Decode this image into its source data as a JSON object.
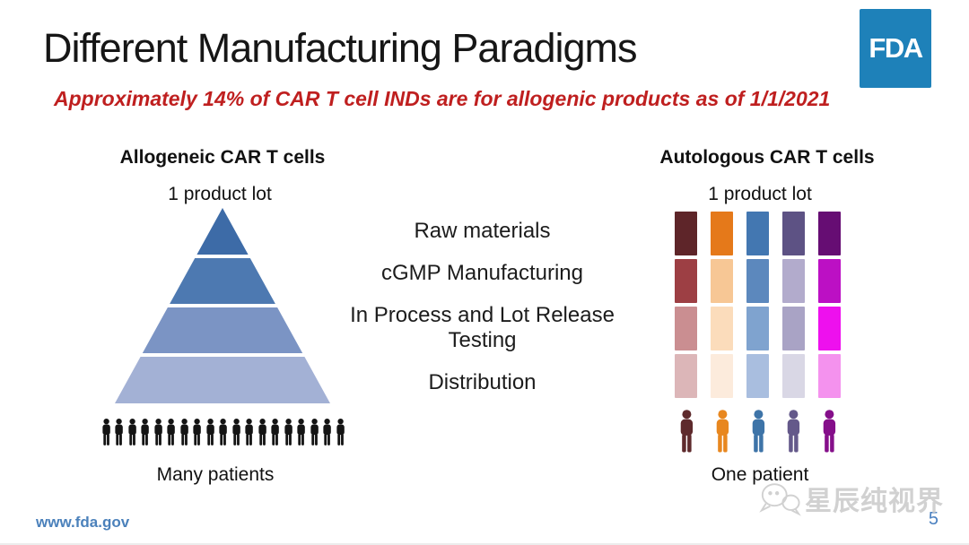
{
  "slide": {
    "title": "Different Manufacturing Paradigms",
    "subtitle": "Approximately 14% of CAR T cell INDs are for allogenic products as of 1/1/2021",
    "fda_logo_text": "FDA",
    "page_number": "5",
    "watermark_text": "星辰纯视界"
  },
  "left_panel": {
    "heading": "Allogeneic CAR T cells",
    "top_label": "1 product lot",
    "bottom_label": "Many patients",
    "patient_count": 19,
    "patient_color": "#141414",
    "pyramid_colors": [
      "#3d6ba7",
      "#4d79b1",
      "#7b94c4",
      "#a3b1d5"
    ]
  },
  "center_labels": [
    "Raw materials",
    "cGMP Manufacturing",
    "In Process and Lot Release Testing",
    "Distribution"
  ],
  "right_panel": {
    "heading": "Autologous CAR T cells",
    "top_label": "1 product lot",
    "bottom_label": "One patient",
    "grid_rows": [
      [
        "#5e2529",
        "#e5791a",
        "#4377b1",
        "#5d5284",
        "#660d73"
      ],
      [
        "#9d3f44",
        "#f7c795",
        "#5c88bd",
        "#b2abcc",
        "#bc10c4"
      ],
      [
        "#ca8e91",
        "#fbdcbb",
        "#7fa3cf",
        "#a9a3c5",
        "#ee10ee"
      ],
      [
        "#dcb6b8",
        "#fcebdc",
        "#a9bedf",
        "#d9d7e5",
        "#f492ee"
      ]
    ],
    "patient_colors": [
      "#5e2a2c",
      "#e8871f",
      "#3e74a8",
      "#64598a",
      "#850f8a"
    ]
  },
  "footer": {
    "url": "www.fda.gov"
  },
  "colors": {
    "accent_red": "#bf1f1f",
    "fda_blue": "#1e81b9",
    "footer_blue": "#4b81bb",
    "page_number_blue": "#4a80c0",
    "watermark_gray": "#c9c9c9"
  }
}
